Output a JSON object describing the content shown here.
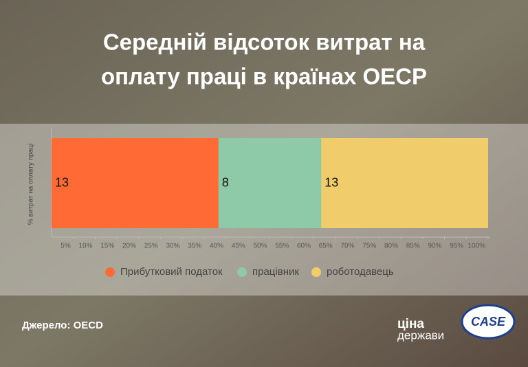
{
  "chart_data": {
    "type": "bar",
    "orientation": "horizontal",
    "stacking": "percent",
    "title": [
      "Середній відсоток витрат на",
      "оплату праці в країнах OECP"
    ],
    "y_label": "% витрат на оплату праці",
    "categories": [
      null
    ],
    "series": [
      {
        "name": "Прибутковий податок",
        "color": "#ff6a35",
        "values": [
          13
        ]
      },
      {
        "name": "працівник",
        "color": "#8fcaa8",
        "values": [
          8
        ]
      },
      {
        "name": "роботодавець",
        "color": "#f0cc6a",
        "values": [
          13
        ]
      }
    ],
    "xlim": [
      0,
      100
    ],
    "xticks": [
      {
        "value": 5,
        "label": "5%"
      },
      {
        "value": 10,
        "label": "10%"
      },
      {
        "value": 15,
        "label": "15%"
      },
      {
        "value": 20,
        "label": "20%"
      },
      {
        "value": 25,
        "label": "25%"
      },
      {
        "value": 30,
        "label": "30%"
      },
      {
        "value": 35,
        "label": "35%"
      },
      {
        "value": 40,
        "label": "40%"
      },
      {
        "value": 45,
        "label": "45%"
      },
      {
        "value": 50,
        "label": "50%"
      },
      {
        "value": 55,
        "label": "55%"
      },
      {
        "value": 60,
        "label": "60%"
      },
      {
        "value": 65,
        "label": "65%"
      },
      {
        "value": 70,
        "label": "70%"
      },
      {
        "value": 75,
        "label": "75%"
      },
      {
        "value": 80,
        "label": "80%"
      },
      {
        "value": 85,
        "label": "85%"
      },
      {
        "value": 90,
        "label": "90%"
      },
      {
        "value": 95,
        "label": "95%"
      },
      {
        "value": 100,
        "label": "100%"
      }
    ],
    "legend": "bottom",
    "source": "Джерело: OECD",
    "logos": {
      "cina": [
        "ціна",
        "держави"
      ],
      "case": "CASE"
    }
  }
}
